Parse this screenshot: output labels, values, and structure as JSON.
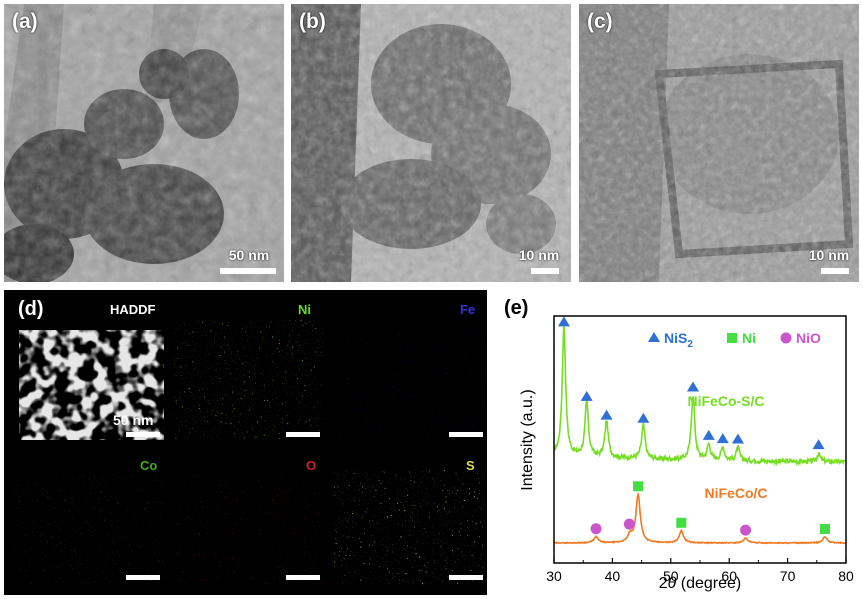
{
  "panels": {
    "a": {
      "label": "(a)",
      "scale": "50 nm"
    },
    "b": {
      "label": "(b)",
      "scale": "10 nm"
    },
    "c": {
      "label": "(c)",
      "scale": "10 nm"
    }
  },
  "eds": {
    "label": "(d)",
    "maps": [
      {
        "name": "HADDF",
        "color": "#ffffff"
      },
      {
        "name": "Ni",
        "color": "#66dd22"
      },
      {
        "name": "Fe",
        "color": "#3333dd"
      },
      {
        "name": "Co",
        "color": "#44aa22"
      },
      {
        "name": "O",
        "color": "#cc2222"
      },
      {
        "name": "S",
        "color": "#dddd55"
      }
    ],
    "scale": "50 nm"
  },
  "chart_data": {
    "type": "line",
    "panel_label": "(e)",
    "xlabel_prefix": "2",
    "xlabel_symbol": "θ",
    "xlabel_suffix": " (degree)",
    "ylabel": "Intensity (a.u.)",
    "xlim": [
      30,
      80
    ],
    "xticks": [
      "30",
      "40",
      "50",
      "60",
      "70",
      "80"
    ],
    "legend": [
      {
        "text": "NiS",
        "sub": "2",
        "marker": "triangle",
        "color": "#2f6fd6"
      },
      {
        "text": "Ni",
        "marker": "square",
        "color": "#44dd44"
      },
      {
        "text": "NiO",
        "marker": "circle",
        "color": "#cc55cc"
      }
    ],
    "series": [
      {
        "name": "NiFeCo-S/C",
        "color": "#77dd22",
        "peaks": [
          [
            31.7,
            1.0
          ],
          [
            35.6,
            0.42
          ],
          [
            39.0,
            0.28
          ],
          [
            45.3,
            0.26
          ],
          [
            53.8,
            0.5
          ],
          [
            56.5,
            0.12
          ],
          [
            58.9,
            0.1
          ],
          [
            61.5,
            0.1
          ],
          [
            75.3,
            0.06
          ]
        ],
        "markers": [
          {
            "x": 31.7,
            "type": "triangle"
          },
          {
            "x": 35.6,
            "type": "triangle"
          },
          {
            "x": 39.0,
            "type": "triangle"
          },
          {
            "x": 45.3,
            "type": "triangle"
          },
          {
            "x": 53.8,
            "type": "triangle"
          },
          {
            "x": 56.5,
            "type": "triangle"
          },
          {
            "x": 58.9,
            "type": "triangle"
          },
          {
            "x": 61.5,
            "type": "triangle"
          },
          {
            "x": 75.3,
            "type": "triangle"
          }
        ]
      },
      {
        "name": "NiFeCo/C",
        "color": "#f07a22",
        "peaks": [
          [
            37.2,
            0.1
          ],
          [
            43.0,
            0.12
          ],
          [
            44.4,
            0.8
          ],
          [
            51.8,
            0.2
          ],
          [
            62.8,
            0.08
          ],
          [
            76.4,
            0.1
          ]
        ],
        "markers": [
          {
            "x": 37.2,
            "type": "circle"
          },
          {
            "x": 42.9,
            "type": "circle"
          },
          {
            "x": 44.4,
            "type": "square"
          },
          {
            "x": 51.8,
            "type": "square"
          },
          {
            "x": 62.8,
            "type": "circle"
          },
          {
            "x": 76.4,
            "type": "square"
          }
        ]
      }
    ]
  }
}
